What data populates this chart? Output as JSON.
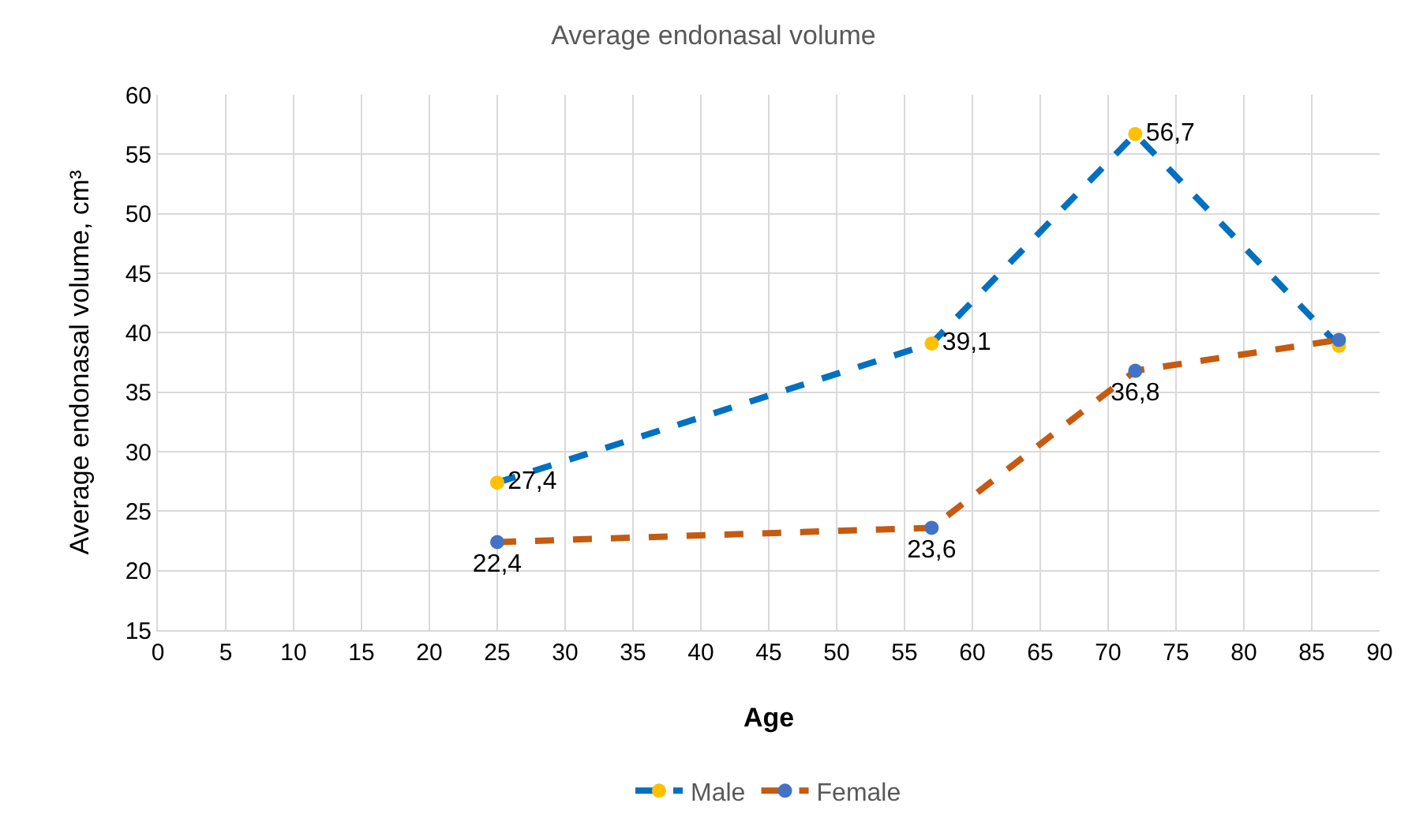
{
  "chart_data": {
    "type": "line",
    "title": "Average endonasal volume",
    "xlabel": "Age",
    "ylabel": "Average endonasal volume, cm³",
    "x": [
      25,
      57,
      72,
      87
    ],
    "series": [
      {
        "name": "Male",
        "color": "#0070c0",
        "colors": [
          "#ffc000",
          "#ffc000",
          "#ffc000",
          "#ffc000"
        ],
        "values": [
          27.4,
          39.1,
          56.7,
          38.9
        ],
        "value_labels": [
          "27,4",
          "39,1",
          "56,7",
          null
        ]
      },
      {
        "name": "Female",
        "color": "#c55a11",
        "colors": [
          "#4472c4",
          "#4472c4",
          "#4472c4",
          "#4472c4"
        ],
        "values": [
          22.4,
          23.6,
          36.8,
          39.4
        ],
        "value_labels": [
          "22,4",
          "23,6",
          "36,8",
          null
        ]
      }
    ],
    "xlim": [
      0,
      90
    ],
    "xticks": [
      0,
      5,
      10,
      15,
      20,
      25,
      30,
      35,
      40,
      45,
      50,
      55,
      60,
      65,
      70,
      75,
      80,
      85,
      90
    ],
    "ylim": [
      15,
      60
    ],
    "yticks": [
      15,
      20,
      25,
      30,
      35,
      40,
      45,
      50,
      55,
      60
    ],
    "grid": true,
    "legend": "bottom",
    "marker": "circle",
    "line_style": "dashed"
  }
}
